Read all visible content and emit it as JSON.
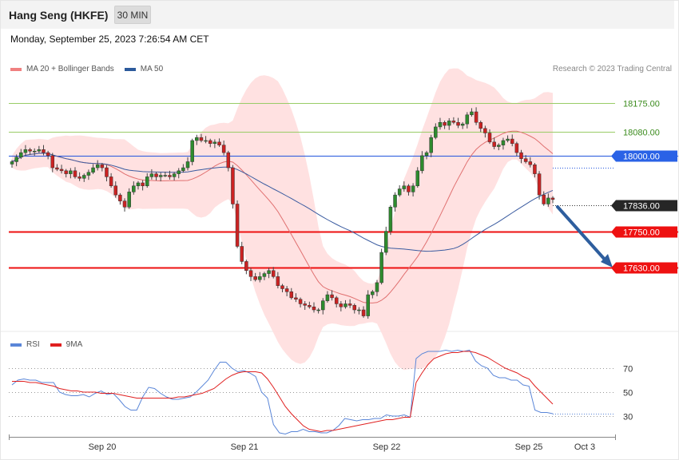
{
  "header": {
    "title": "Hang Seng (HKFE)",
    "interval": "30 MIN"
  },
  "timestamp": "Monday, September 25, 2023 7:26:54 AM CET",
  "legend": {
    "bollinger": "MA 20 + Bollinger Bands",
    "ma50": "MA 50"
  },
  "copyright": "Research © 2023 Trading Central",
  "rsi_legend": {
    "rsi": "RSI",
    "ma9": "9MA"
  },
  "colors": {
    "bullish": "#2e8b2e",
    "bearish": "#cc2222",
    "ma20": "#e07070",
    "ma50": "#3a5ba0",
    "band_fill": "#ffdcdc",
    "resistance": "#99cc66",
    "pivot": "#2255dd",
    "support": "#ee1111",
    "arrow": "#2e5e9e",
    "rsi_line": "#5a86d8",
    "rsi_ma": "#e02020"
  },
  "chart_data": [
    {
      "type": "line",
      "subtype": "candlestick",
      "title": "Hang Seng (HKFE)",
      "xlabel": "",
      "ylabel": "",
      "x_ticks": [
        "Sep 20",
        "Sep 21",
        "Sep 22",
        "Sep 25",
        "Oct 3"
      ],
      "ylim": [
        17410,
        18250
      ],
      "grid": false,
      "legend_position": "top-left",
      "close_series": [
        17980,
        17995,
        18010,
        18020,
        18015,
        18015,
        18020,
        18010,
        18000,
        17960,
        17955,
        17950,
        17940,
        17950,
        17930,
        17925,
        17935,
        17945,
        17960,
        17970,
        17960,
        17930,
        17900,
        17870,
        17850,
        17830,
        17880,
        17900,
        17910,
        17900,
        17930,
        17940,
        17930,
        17935,
        17935,
        17930,
        17940,
        17950,
        17960,
        17980,
        18050,
        18060,
        18050,
        18050,
        18040,
        18045,
        18035,
        18010,
        17960,
        17840,
        17700,
        17650,
        17620,
        17600,
        17590,
        17600,
        17610,
        17620,
        17600,
        17570,
        17560,
        17550,
        17530,
        17525,
        17510,
        17505,
        17500,
        17490,
        17490,
        17520,
        17540,
        17530,
        17510,
        17500,
        17510,
        17505,
        17490,
        17490,
        17470,
        17540,
        17550,
        17580,
        17680,
        17750,
        17830,
        17870,
        17890,
        17900,
        17880,
        17900,
        17950,
        18000,
        18010,
        18060,
        18095,
        18110,
        18100,
        18115,
        18110,
        18100,
        18105,
        18135,
        18145,
        18110,
        18090,
        18075,
        18045,
        18030,
        18035,
        18050,
        18055,
        18040,
        18010,
        17990,
        17980,
        17970,
        17940,
        17870,
        17840,
        17860,
        17855
      ],
      "series": [
        {
          "name": "MA 20 + Bollinger Bands",
          "role": "ma20"
        },
        {
          "name": "MA 50",
          "role": "ma50"
        }
      ],
      "levels": [
        {
          "value": 18175,
          "label": "18175.00",
          "kind": "resistance"
        },
        {
          "value": 18080,
          "label": "18080.00",
          "kind": "resistance"
        },
        {
          "value": 18000,
          "label": "18000.00",
          "kind": "pivot"
        },
        {
          "value": 17836,
          "label": "17836.00",
          "kind": "last-price"
        },
        {
          "value": 17750,
          "label": "17750.00",
          "kind": "support"
        },
        {
          "value": 17630,
          "label": "17630.00",
          "kind": "support"
        }
      ],
      "forecast_arrow": {
        "from": 17836,
        "to": 17630
      }
    },
    {
      "type": "line",
      "title": "",
      "series": [
        {
          "name": "RSI",
          "values": [
            56,
            60,
            61,
            60,
            60,
            58,
            58,
            58,
            50,
            48,
            47,
            47,
            48,
            46,
            49,
            51,
            48,
            49,
            44,
            38,
            35,
            35,
            46,
            54,
            53,
            49,
            46,
            44,
            44,
            45,
            46,
            50,
            55,
            60,
            68,
            75,
            75,
            70,
            67,
            68,
            66,
            63,
            50,
            45,
            23,
            16,
            15,
            17,
            17,
            19,
            17,
            17,
            16,
            16,
            18,
            22,
            28,
            27,
            26,
            27,
            27,
            28,
            28,
            31,
            30,
            30,
            31,
            29,
            78,
            82,
            84,
            84,
            84,
            85,
            84,
            85,
            84,
            85,
            76,
            72,
            70,
            64,
            62,
            62,
            60,
            60,
            56,
            55,
            35,
            33,
            33,
            32
          ]
        },
        {
          "name": "9MA",
          "values": [
            59,
            59,
            59,
            58,
            58,
            57,
            56,
            55,
            53,
            52,
            51,
            51,
            50,
            50,
            50,
            49,
            49,
            49,
            48,
            47,
            46,
            45,
            45,
            45,
            45,
            45,
            45,
            45,
            46,
            46,
            47,
            48,
            49,
            51,
            53,
            57,
            61,
            64,
            66,
            67,
            67,
            67,
            66,
            61,
            54,
            46,
            38,
            32,
            27,
            22,
            19,
            18,
            17,
            18,
            18,
            19,
            20,
            21,
            22,
            23,
            24,
            25,
            26,
            27,
            27,
            28,
            29,
            29,
            58,
            66,
            73,
            78,
            80,
            82,
            83,
            83,
            84,
            84,
            83,
            81,
            79,
            76,
            73,
            70,
            68,
            66,
            63,
            61,
            55,
            50,
            45,
            40
          ]
        }
      ],
      "yticks": [
        70,
        50,
        30
      ],
      "ylim": [
        14,
        90
      ]
    }
  ]
}
